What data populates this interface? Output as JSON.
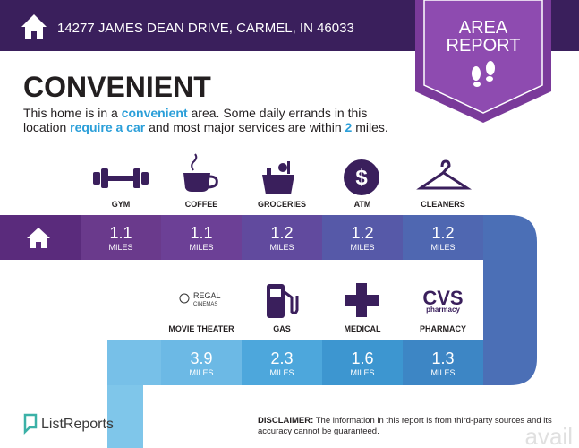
{
  "header": {
    "address": "14277 JAMES DEAN DRIVE, CARMEL, IN 46033"
  },
  "badge": {
    "lines": [
      "AREA",
      "REPORT"
    ]
  },
  "headline": "CONVENIENT",
  "description": {
    "lines": [
      [
        {
          "text": "This home is in a ",
          "emphasis": false
        },
        {
          "text": "convenient",
          "emphasis": true
        },
        {
          "text": " area. Some daily errands in this",
          "emphasis": false
        }
      ],
      [
        {
          "text": "location ",
          "emphasis": false
        },
        {
          "text": "require a car",
          "emphasis": true
        },
        {
          "text": " and most major services are within ",
          "emphasis": false
        },
        {
          "text": "2",
          "emphasis": true
        },
        {
          "text": " miles.",
          "emphasis": false
        }
      ]
    ]
  },
  "services": {
    "row1": [
      {
        "label": "GYM",
        "distance": 1.1,
        "unit": "MILES"
      },
      {
        "label": "COFFEE",
        "distance": 1.1,
        "unit": "MILES"
      },
      {
        "label": "GROCERIES",
        "distance": 1.2,
        "unit": "MILES"
      },
      {
        "label": "ATM",
        "distance": 1.2,
        "unit": "MILES"
      },
      {
        "label": "CLEANERS",
        "distance": 1.2,
        "unit": "MILES"
      }
    ],
    "row2": [
      {
        "label": "MOVIE THEATER",
        "distance": 3.9,
        "unit": "MILES"
      },
      {
        "label": "GAS",
        "distance": 2.3,
        "unit": "MILES"
      },
      {
        "label": "MEDICAL",
        "distance": 1.6,
        "unit": "MILES"
      },
      {
        "label": "PHARMACY",
        "distance": 1.3,
        "unit": "MILES"
      }
    ]
  },
  "logos": {
    "regal": [
      "REGAL",
      "CINEMAS"
    ],
    "cvs": [
      "CVS",
      "pharmacy"
    ]
  },
  "footer": {
    "brand": "ListReports",
    "disclaimer_label": "DISCLAIMER:",
    "disclaimer_lines": [
      "The information in this report is from third-party sources and its",
      "accuracy cannot be guaranteed."
    ],
    "watermark": "avail"
  }
}
